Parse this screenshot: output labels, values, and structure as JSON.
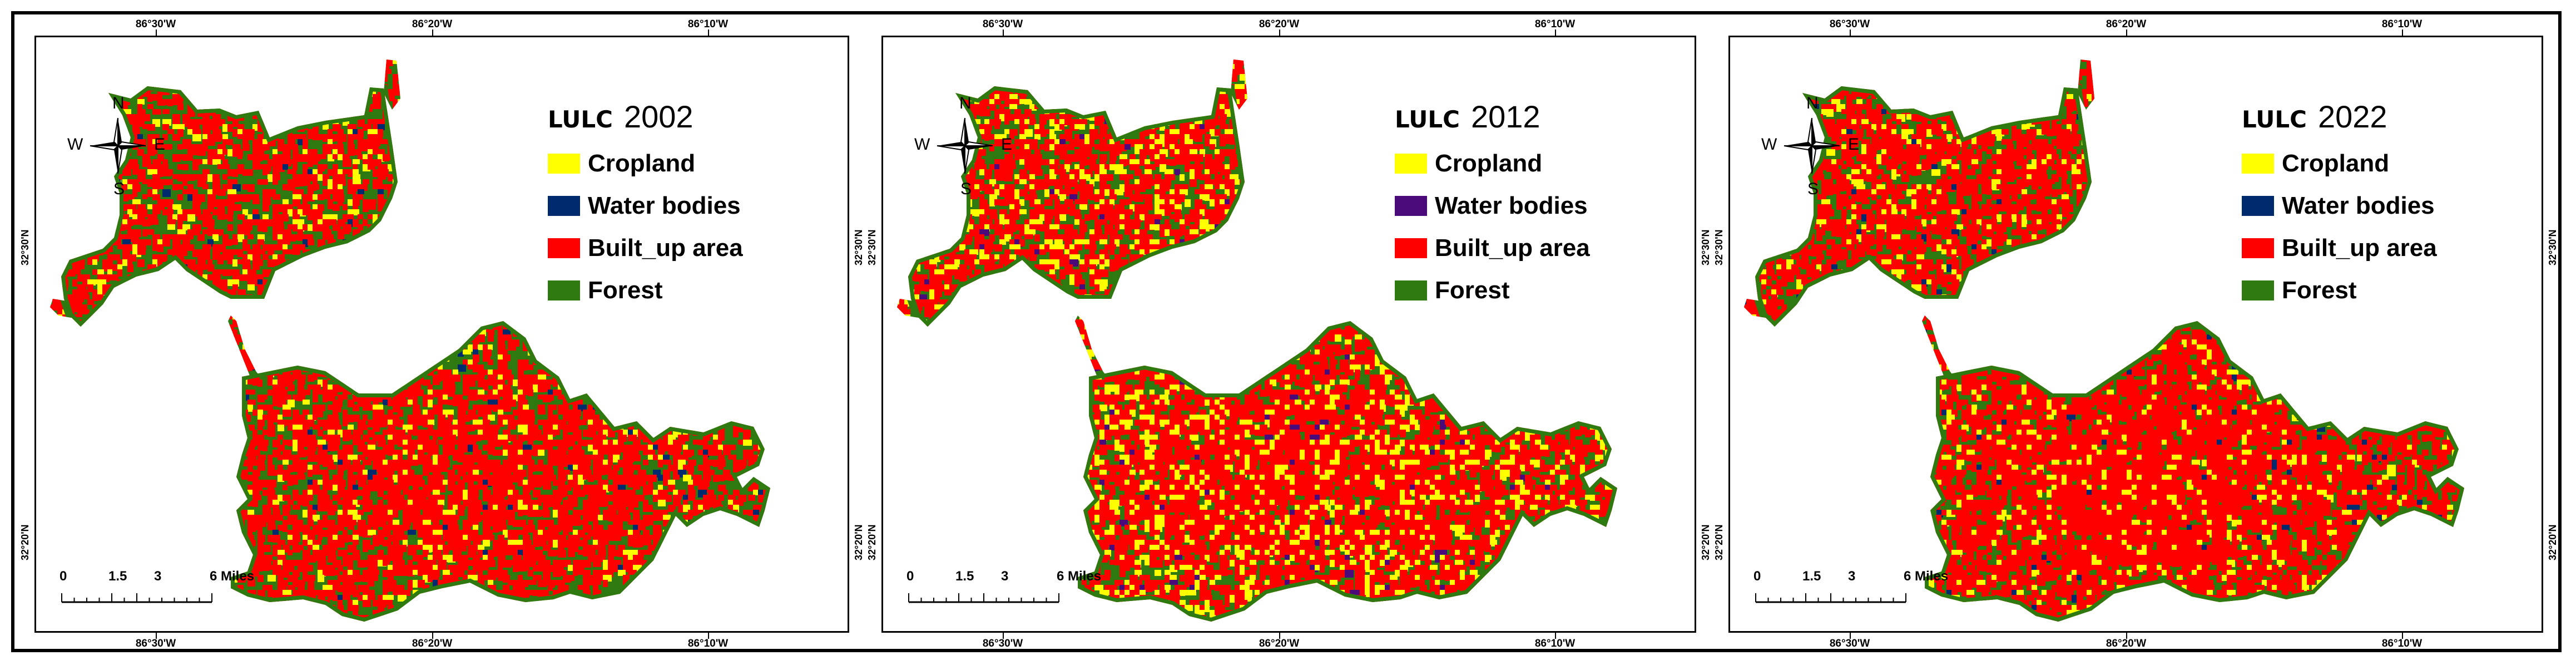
{
  "panels": [
    {
      "legend_title": "LULC",
      "year": "2002",
      "top_ticks": [
        "86°30'W",
        "86°20'W",
        "86°10'W"
      ],
      "bottom_ticks": [
        "86°30'W",
        "86°20'W",
        "86°10'W"
      ],
      "side_ticks": [
        "32°30'N",
        "32°20'N"
      ],
      "legend_items": [
        {
          "label": "Cropland",
          "color": "#ffff00"
        },
        {
          "label": "Water bodies",
          "color": "#002a6e"
        },
        {
          "label": "Built_up area",
          "color": "#ff0000"
        },
        {
          "label": "Forest",
          "color": "#2f7a10"
        }
      ],
      "compass": {
        "n": "N",
        "s": "S",
        "e": "E",
        "w": "W"
      },
      "scale": {
        "values": [
          "0",
          "1.5",
          "3",
          "6 Miles"
        ]
      },
      "dominant_mix": {
        "forest": 0.45,
        "built": 0.47,
        "crop": 0.06,
        "water": 0.02
      }
    },
    {
      "legend_title": "LULC",
      "year": "2012",
      "top_ticks": [
        "86°30'W",
        "86°20'W",
        "86°10'W"
      ],
      "bottom_ticks": [
        "86°30'W",
        "86°20'W",
        "86°10'W"
      ],
      "side_ticks": [
        "32°30'N",
        "32°20'N"
      ],
      "legend_items": [
        {
          "label": "Cropland",
          "color": "#ffff00"
        },
        {
          "label": "Water bodies",
          "color": "#4b0a7a"
        },
        {
          "label": "Built_up area",
          "color": "#ff0000"
        },
        {
          "label": "Forest",
          "color": "#2f7a10"
        }
      ],
      "compass": {
        "n": "N",
        "s": "S",
        "e": "E",
        "w": "W"
      },
      "scale": {
        "values": [
          "0",
          "1.5",
          "3",
          "6 Miles"
        ]
      },
      "dominant_mix": {
        "forest": 0.33,
        "built": 0.5,
        "crop": 0.15,
        "water": 0.02
      }
    },
    {
      "legend_title": "LULC",
      "year": "2022",
      "top_ticks": [
        "86°30'W",
        "86°20'W",
        "86°10'W"
      ],
      "bottom_ticks": [
        "86°30'W",
        "86°20'W",
        "86°10'W"
      ],
      "side_ticks": [
        "32°30'N",
        "32°20'N"
      ],
      "legend_items": [
        {
          "label": "Cropland",
          "color": "#ffff00"
        },
        {
          "label": "Water bodies",
          "color": "#002a6e"
        },
        {
          "label": "Built_up area",
          "color": "#ff0000"
        },
        {
          "label": "Forest",
          "color": "#2f7a10"
        }
      ],
      "compass": {
        "n": "N",
        "s": "S",
        "e": "E",
        "w": "W"
      },
      "scale": {
        "values": [
          "0",
          "1.5",
          "3",
          "6 Miles"
        ]
      },
      "dominant_mix": {
        "forest": 0.32,
        "built": 0.58,
        "crop": 0.08,
        "water": 0.02
      }
    }
  ]
}
